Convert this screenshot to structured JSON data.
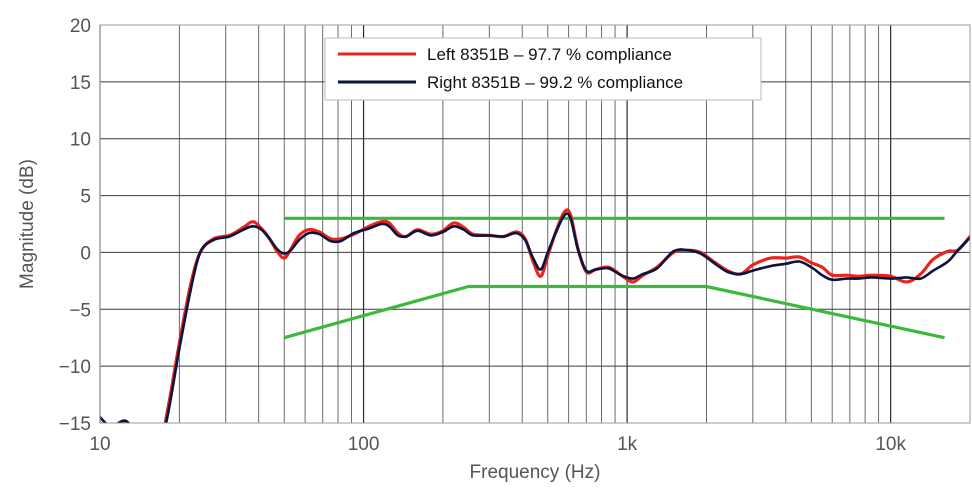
{
  "chart_data": {
    "type": "line",
    "xlabel": "Frequency (Hz)",
    "ylabel": "Magnitude (dB)",
    "x_scale": "log",
    "xlim": [
      10,
      20000
    ],
    "ylim": [
      -15,
      20
    ],
    "x_ticks": [
      10,
      100,
      1000,
      10000
    ],
    "x_tick_labels": [
      "10",
      "100",
      "1k",
      "10k"
    ],
    "y_ticks": [
      -15,
      -10,
      -5,
      0,
      5,
      10,
      15,
      20
    ],
    "y_tick_labels": [
      "−15",
      "−10",
      "−5",
      "0",
      "5",
      "10",
      "15",
      "20"
    ],
    "grid": true,
    "legend_position": "top-center",
    "series": [
      {
        "name": "Left 8351B – 97.7 % compliance",
        "color": "#e8241c",
        "points": [
          [
            10,
            -15
          ],
          [
            11,
            -15.5
          ],
          [
            12.5,
            -15
          ],
          [
            14,
            -16
          ],
          [
            17,
            -16
          ],
          [
            18,
            -14
          ],
          [
            20,
            -8
          ],
          [
            22,
            -3
          ],
          [
            24,
            0
          ],
          [
            27,
            1.2
          ],
          [
            31,
            1.5
          ],
          [
            35,
            2.2
          ],
          [
            38,
            2.7
          ],
          [
            41,
            2.1
          ],
          [
            44,
            1.2
          ],
          [
            47,
            0.1
          ],
          [
            50,
            -0.5
          ],
          [
            53,
            0.3
          ],
          [
            57,
            1.5
          ],
          [
            62,
            2
          ],
          [
            68,
            1.8
          ],
          [
            75,
            1.2
          ],
          [
            82,
            1.2
          ],
          [
            92,
            1.6
          ],
          [
            105,
            2.3
          ],
          [
            117,
            2.7
          ],
          [
            125,
            2.6
          ],
          [
            135,
            1.7
          ],
          [
            145,
            1.4
          ],
          [
            160,
            2
          ],
          [
            180,
            1.6
          ],
          [
            200,
            1.9
          ],
          [
            220,
            2.6
          ],
          [
            240,
            2.2
          ],
          [
            260,
            1.6
          ],
          [
            300,
            1.5
          ],
          [
            340,
            1.4
          ],
          [
            380,
            1.8
          ],
          [
            410,
            1.2
          ],
          [
            440,
            -0.8
          ],
          [
            470,
            -2.1
          ],
          [
            500,
            -0.3
          ],
          [
            540,
            2
          ],
          [
            580,
            3.6
          ],
          [
            610,
            3.3
          ],
          [
            650,
            0.4
          ],
          [
            700,
            -1.7
          ],
          [
            760,
            -1.5
          ],
          [
            850,
            -1.3
          ],
          [
            950,
            -2
          ],
          [
            1050,
            -2.6
          ],
          [
            1150,
            -2
          ],
          [
            1300,
            -1.3
          ],
          [
            1500,
            0
          ],
          [
            1700,
            0.2
          ],
          [
            1900,
            0
          ],
          [
            2100,
            -0.7
          ],
          [
            2400,
            -1.6
          ],
          [
            2700,
            -1.9
          ],
          [
            3000,
            -1.1
          ],
          [
            3500,
            -0.5
          ],
          [
            4000,
            -0.5
          ],
          [
            4500,
            -0.4
          ],
          [
            5000,
            -0.9
          ],
          [
            5500,
            -1.3
          ],
          [
            6000,
            -2
          ],
          [
            6800,
            -2
          ],
          [
            7500,
            -2.1
          ],
          [
            8500,
            -2
          ],
          [
            10000,
            -2.1
          ],
          [
            11500,
            -2.6
          ],
          [
            13000,
            -1.9
          ],
          [
            14500,
            -0.6
          ],
          [
            16500,
            0.1
          ],
          [
            18000,
            0.2
          ],
          [
            20000,
            1.4
          ]
        ]
      },
      {
        "name": "Right 8351B – 99.2 % compliance",
        "color": "#0b1340",
        "points": [
          [
            10,
            -14.5
          ],
          [
            11,
            -15.3
          ],
          [
            12.5,
            -14.8
          ],
          [
            14,
            -16
          ],
          [
            17,
            -16
          ],
          [
            18,
            -14.5
          ],
          [
            20,
            -8.5
          ],
          [
            22,
            -3.5
          ],
          [
            24,
            0
          ],
          [
            27,
            1.1
          ],
          [
            31,
            1.4
          ],
          [
            35,
            2
          ],
          [
            38,
            2.3
          ],
          [
            41,
            2
          ],
          [
            44,
            1.2
          ],
          [
            47,
            0.3
          ],
          [
            50,
            -0.1
          ],
          [
            53,
            0.2
          ],
          [
            57,
            1.1
          ],
          [
            62,
            1.7
          ],
          [
            68,
            1.6
          ],
          [
            75,
            1
          ],
          [
            82,
            1
          ],
          [
            92,
            1.7
          ],
          [
            105,
            2.1
          ],
          [
            117,
            2.5
          ],
          [
            125,
            2.3
          ],
          [
            135,
            1.5
          ],
          [
            145,
            1.4
          ],
          [
            160,
            1.9
          ],
          [
            180,
            1.5
          ],
          [
            200,
            1.8
          ],
          [
            220,
            2.3
          ],
          [
            240,
            2
          ],
          [
            260,
            1.5
          ],
          [
            300,
            1.5
          ],
          [
            340,
            1.4
          ],
          [
            380,
            1.7
          ],
          [
            410,
            1.1
          ],
          [
            440,
            -0.5
          ],
          [
            470,
            -1.5
          ],
          [
            500,
            0
          ],
          [
            540,
            1.9
          ],
          [
            580,
            3.3
          ],
          [
            610,
            3
          ],
          [
            650,
            0.3
          ],
          [
            700,
            -1.6
          ],
          [
            760,
            -1.5
          ],
          [
            850,
            -1.4
          ],
          [
            950,
            -2
          ],
          [
            1050,
            -2.3
          ],
          [
            1150,
            -1.9
          ],
          [
            1300,
            -1.4
          ],
          [
            1500,
            0.1
          ],
          [
            1700,
            0.2
          ],
          [
            1900,
            -0.1
          ],
          [
            2100,
            -0.8
          ],
          [
            2400,
            -1.7
          ],
          [
            2700,
            -1.9
          ],
          [
            3000,
            -1.6
          ],
          [
            3500,
            -1.2
          ],
          [
            4000,
            -1
          ],
          [
            4500,
            -0.8
          ],
          [
            5000,
            -1.3
          ],
          [
            5500,
            -2
          ],
          [
            6000,
            -2.4
          ],
          [
            6800,
            -2.3
          ],
          [
            7500,
            -2.3
          ],
          [
            8500,
            -2.2
          ],
          [
            10000,
            -2.3
          ],
          [
            11500,
            -2.2
          ],
          [
            13000,
            -2.3
          ],
          [
            14500,
            -1.6
          ],
          [
            16500,
            -0.8
          ],
          [
            18000,
            0.2
          ],
          [
            20000,
            1.3
          ]
        ]
      }
    ],
    "tolerance_upper": {
      "color": "#3cb83c",
      "points": [
        [
          50,
          3
        ],
        [
          16000,
          3
        ]
      ]
    },
    "tolerance_lower": {
      "color": "#3cb83c",
      "points": [
        [
          50,
          -7.5
        ],
        [
          250,
          -3
        ],
        [
          2000,
          -3
        ],
        [
          16000,
          -7.5
        ]
      ]
    }
  }
}
